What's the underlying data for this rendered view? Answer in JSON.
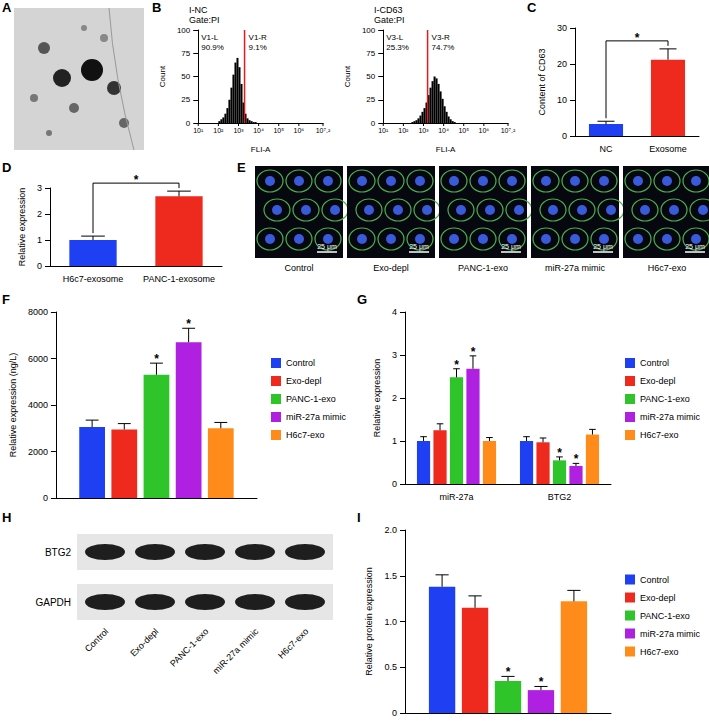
{
  "image_panels": {
    "A": {
      "panel": "A"
    },
    "E": {
      "panel": "E",
      "images": [
        "Control",
        "Exo-depl",
        "PANC-1-exo",
        "miR-27a mimic",
        "H6c7-exo"
      ],
      "scale_bar": "25 μm"
    },
    "H": {
      "panel": "H",
      "rows": [
        "BTG2",
        "GAPDH"
      ],
      "lanes": [
        "Control",
        "Exo-depl",
        "PANC-1-exo",
        "miR-27a mimic",
        "H6c7-exo"
      ]
    }
  },
  "chart_data": [
    {
      "panel": "B",
      "type": "histogram",
      "title": "I-NC",
      "subtitle": "Gate:PI",
      "x_label": "FLI-A",
      "y_label": "Count",
      "log": "x",
      "color": "#000000",
      "bins": [
        100,
        126,
        158,
        200,
        251,
        316,
        398,
        501,
        631,
        794,
        1000,
        1259,
        1585,
        1995,
        2512,
        3162,
        3981,
        5012,
        6310,
        7943,
        10000,
        12589,
        15849,
        19953,
        25119,
        31623,
        39811
      ],
      "counts": [
        2,
        4,
        6,
        10,
        16,
        25,
        38,
        52,
        65,
        70,
        60,
        42,
        22,
        10,
        5,
        3,
        2,
        1,
        1,
        0,
        0,
        0,
        0,
        0,
        0,
        0
      ],
      "gate": 2000,
      "regions": [
        {
          "name": "V1-L",
          "value_label": "90.9%"
        },
        {
          "name": "V1-R",
          "value_label": "9.1%"
        }
      ],
      "xlim": [
        10,
        15848932
      ],
      "xticks": [
        {
          "value": 10,
          "label": "10¹"
        },
        {
          "value": 100,
          "label": "10²"
        },
        {
          "value": 1000,
          "label": "10³"
        },
        {
          "value": 10000,
          "label": "10⁴"
        },
        {
          "value": 100000,
          "label": "10⁵"
        },
        {
          "value": 1000000,
          "label": "10⁶"
        },
        {
          "value": 15848932,
          "label": "10⁷.²"
        }
      ],
      "ylim": [
        0,
        100
      ],
      "yticks": [
        0,
        25,
        50,
        75,
        100
      ],
      "grid": false
    },
    {
      "type": "histogram",
      "title": "I-CD63",
      "subtitle": "Gate:PI",
      "x_label": "FLI-A",
      "y_label": "Count",
      "log": "x",
      "color": "#000000",
      "bins": [
        100,
        126,
        158,
        200,
        251,
        316,
        398,
        501,
        631,
        794,
        1000,
        1259,
        1585,
        1995,
        2512,
        3162,
        3981,
        5012,
        6310,
        7943,
        10000,
        12589,
        15849,
        19953,
        25119,
        31623,
        39811
      ],
      "counts": [
        0,
        0,
        0,
        0,
        1,
        2,
        3,
        5,
        8,
        12,
        16,
        22,
        30,
        38,
        45,
        50,
        48,
        42,
        34,
        26,
        18,
        12,
        7,
        4,
        2,
        1
      ],
      "gate": 1600,
      "regions": [
        {
          "name": "V3-L",
          "value_label": "25.3%"
        },
        {
          "name": "V3-R",
          "value_label": "74.7%"
        }
      ],
      "xlim": [
        10,
        15848932
      ],
      "xticks": [
        {
          "value": 10,
          "label": "10¹"
        },
        {
          "value": 100,
          "label": "10²"
        },
        {
          "value": 1000,
          "label": "10³"
        },
        {
          "value": 10000,
          "label": "10⁴"
        },
        {
          "value": 100000,
          "label": "10⁵"
        },
        {
          "value": 1000000,
          "label": "10⁶"
        },
        {
          "value": 15848932,
          "label": "10⁷.²"
        }
      ],
      "ylim": [
        0,
        100
      ],
      "yticks": [
        0,
        25,
        50,
        75,
        100
      ],
      "grid": false
    },
    {
      "panel": "C",
      "type": "bar",
      "categories": [
        "NC",
        "Exosome"
      ],
      "values": [
        3.3,
        21.2
      ],
      "errors": [
        0.8,
        3.0
      ],
      "colors": [
        "#1f3ff2",
        "#ee2a1e"
      ],
      "y_label": "Content of CD63",
      "ylim": [
        0,
        30
      ],
      "yticks": [
        0,
        10,
        20,
        30
      ],
      "annotation": "*",
      "grid": false
    },
    {
      "panel": "D",
      "type": "bar",
      "categories": [
        "H6c7-exosome",
        "PANC-1-exosome"
      ],
      "values": [
        1.0,
        2.68
      ],
      "errors": [
        0.15,
        0.2
      ],
      "colors": [
        "#1f3ff2",
        "#ee2a1e"
      ],
      "y_label": "Relative expression",
      "ylim": [
        0,
        3
      ],
      "yticks": [
        0,
        1,
        2,
        3
      ],
      "annotation": "*",
      "grid": false
    },
    {
      "panel": "F",
      "type": "bar",
      "categories": [
        null
      ],
      "series": [
        {
          "name": "Control",
          "color": "#1f3ff2",
          "values": [
            3050
          ],
          "errors": [
            300
          ]
        },
        {
          "name": "Exo-depl",
          "color": "#ee2a1e",
          "values": [
            2950
          ],
          "errors": [
            250
          ]
        },
        {
          "name": "PANC-1-exo",
          "color": "#2ec42a",
          "values": [
            5300
          ],
          "errors": [
            500
          ],
          "annotations": [
            "*"
          ]
        },
        {
          "name": "miR-27a mimic",
          "color": "#b020e0",
          "values": [
            6700
          ],
          "errors": [
            600
          ],
          "annotations": [
            "*"
          ]
        },
        {
          "name": "H6c7-exo",
          "color": "#ff8c1a",
          "values": [
            3000
          ],
          "errors": [
            250
          ]
        }
      ],
      "y_label": "Relative expression (ng/L)",
      "ylim": [
        0,
        8000
      ],
      "yticks": [
        0,
        2000,
        4000,
        6000,
        8000
      ],
      "legend": "right",
      "grid": false
    },
    {
      "panel": "G",
      "type": "bar",
      "categories": [
        "miR-27a",
        "BTG2"
      ],
      "series": [
        {
          "name": "Control",
          "color": "#1f3ff2",
          "values": [
            1.0,
            1.0
          ],
          "errors": [
            0.1,
            0.1
          ]
        },
        {
          "name": "Exo-depl",
          "color": "#ee2a1e",
          "values": [
            1.25,
            0.97
          ],
          "errors": [
            0.15,
            0.1
          ]
        },
        {
          "name": "PANC-1-exo",
          "color": "#2ec42a",
          "values": [
            2.48,
            0.55
          ],
          "errors": [
            0.2,
            0.08
          ],
          "annotations": [
            "*",
            "*"
          ]
        },
        {
          "name": "miR-27a mimic",
          "color": "#b020e0",
          "values": [
            2.68,
            0.42
          ],
          "errors": [
            0.3,
            0.06
          ],
          "annotations": [
            "*",
            "*"
          ]
        },
        {
          "name": "H6c7-exo",
          "color": "#ff8c1a",
          "values": [
            1.0,
            1.15
          ],
          "errors": [
            0.08,
            0.12
          ]
        }
      ],
      "y_label": "Relative expression",
      "ylim": [
        0,
        4
      ],
      "yticks": [
        0,
        1,
        2,
        3,
        4
      ],
      "legend": "right",
      "grid": false
    },
    {
      "panel": "I",
      "type": "bar",
      "categories": [
        null
      ],
      "series": [
        {
          "name": "Control",
          "color": "#1f3ff2",
          "values": [
            1.38
          ],
          "errors": [
            0.13
          ]
        },
        {
          "name": "Exo-depl",
          "color": "#ee2a1e",
          "values": [
            1.15
          ],
          "errors": [
            0.13
          ]
        },
        {
          "name": "PANC-1-exo",
          "color": "#2ec42a",
          "values": [
            0.35
          ],
          "errors": [
            0.05
          ],
          "annotations": [
            "*"
          ]
        },
        {
          "name": "miR-27a mimic",
          "color": "#b020e0",
          "values": [
            0.25
          ],
          "errors": [
            0.04
          ],
          "annotations": [
            "*"
          ]
        },
        {
          "name": "H6c7-exo",
          "color": "#ff8c1a",
          "values": [
            1.22
          ],
          "errors": [
            0.12
          ]
        }
      ],
      "y_label": "Relative protein expression",
      "ylim": [
        0,
        2.0
      ],
      "yticks": [
        0,
        0.5,
        {
          "value": 1.0,
          "label": "1.0"
        },
        1.5,
        {
          "value": 2.0,
          "label": "2.0"
        }
      ],
      "legend": "right",
      "grid": false
    }
  ]
}
